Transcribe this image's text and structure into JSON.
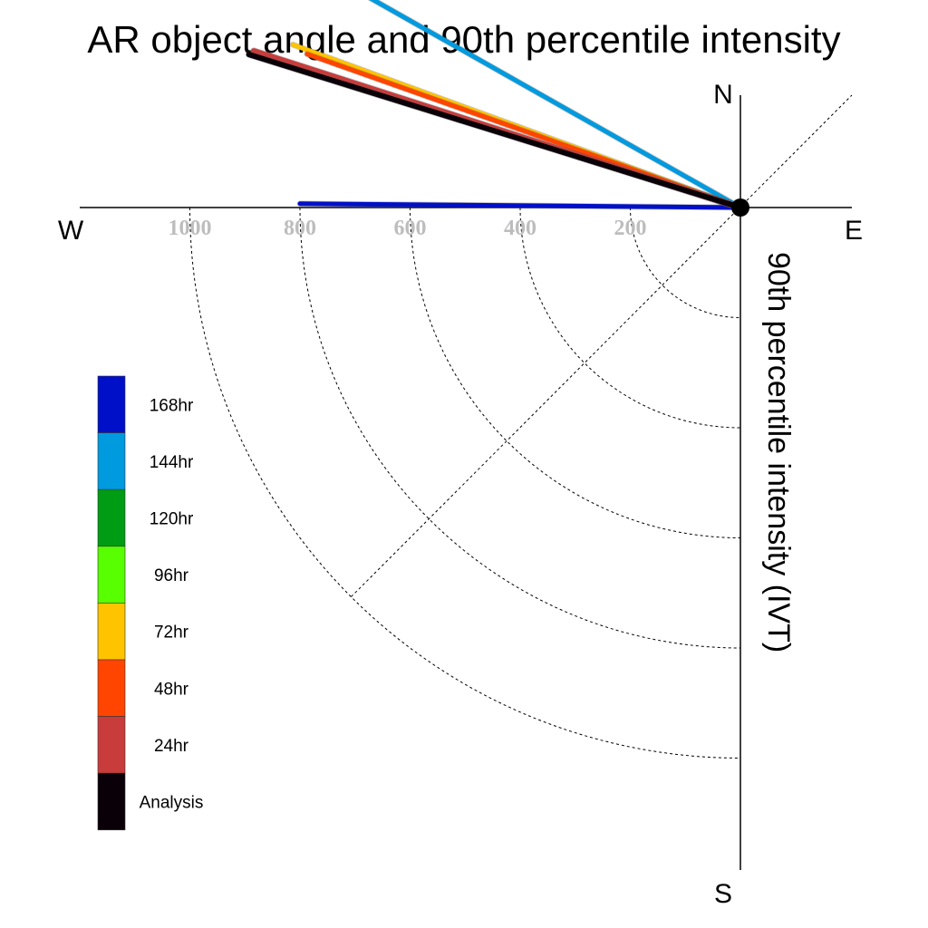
{
  "chart_data": {
    "type": "polar-vector",
    "title": "AR object angle and 90th percentile intensity",
    "ylabel": "90th percentile intensity (IVT)",
    "compass": {
      "north": "N",
      "south": "S",
      "east": "E",
      "west": "W"
    },
    "radial_ticks": [
      "200",
      "400",
      "600",
      "800",
      "1000"
    ],
    "radial_values": [
      200,
      400,
      600,
      800,
      1000
    ],
    "rlim": [
      0,
      1000
    ],
    "grid": true,
    "legend_position": "left",
    "series": [
      {
        "name": "168hr",
        "color": "#0010c8",
        "angle_deg": 180.5,
        "intensity": 800,
        "width": 5
      },
      {
        "name": "144hr",
        "color": "#009adf",
        "angle_deg": 209.5,
        "intensity": 835,
        "width": 5
      },
      {
        "name": "72hr",
        "color": "#ffc400",
        "angle_deg": 200,
        "intensity": 865,
        "width": 5
      },
      {
        "name": "48hr",
        "color": "#ff4500",
        "angle_deg": 199.5,
        "intensity": 835,
        "width": 5
      },
      {
        "name": "24hr",
        "color": "#c83c3c",
        "angle_deg": 197.8,
        "intensity": 928,
        "width": 7
      },
      {
        "name": "Analysis",
        "color": "#0a0008",
        "angle_deg": 197.3,
        "intensity": 935,
        "width": 6
      }
    ],
    "legend": [
      {
        "label": "168hr",
        "color": "#0010c8"
      },
      {
        "label": "144hr",
        "color": "#009adf"
      },
      {
        "label": "120hr",
        "color": "#009c14"
      },
      {
        "label": "96hr",
        "color": "#57ff00"
      },
      {
        "label": "72hr",
        "color": "#ffc400"
      },
      {
        "label": "48hr",
        "color": "#ff4500"
      },
      {
        "label": "24hr",
        "color": "#c83c3c"
      },
      {
        "label": "Analysis",
        "color": "#0a0008"
      }
    ]
  }
}
